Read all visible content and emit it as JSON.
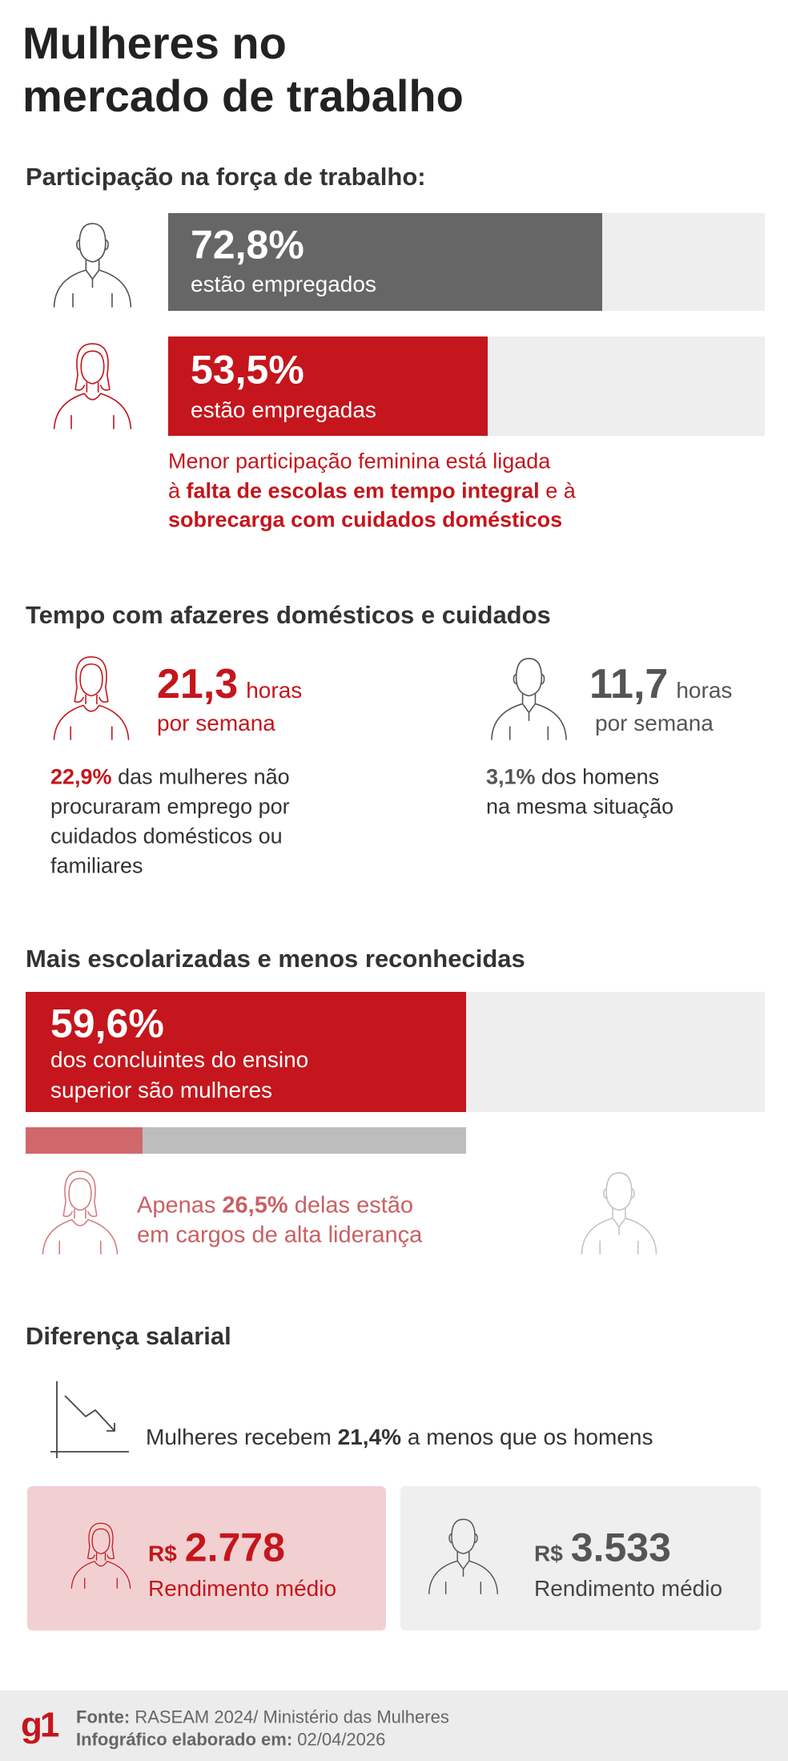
{
  "header": {
    "title_lines": [
      "Mulheres no",
      "mercado de trabalho"
    ]
  },
  "participation": {
    "heading": "Participação na força de trabalho:",
    "men": {
      "value": 72.8,
      "label": "72,8%",
      "caption": "estão empregados"
    },
    "women": {
      "value": 53.5,
      "label": "53,5%",
      "caption": "estão empregadas"
    },
    "note": [
      [
        {
          "text": "Menor participação feminina está ligada"
        }
      ],
      [
        {
          "text": "à "
        },
        {
          "text": "falta de escolas em tempo integral",
          "strong": true
        },
        {
          "text": " e à"
        }
      ],
      [
        {
          "text": "sobrecarga com cuidados domésticos",
          "strong": true
        }
      ]
    ]
  },
  "domestic": {
    "heading": "Tempo com afazeres domésticos e cuidados",
    "women": {
      "hours": "21,3",
      "unit": "horas",
      "period": "por semana",
      "note": [
        [
          {
            "text": "22,9%",
            "strong": true
          },
          {
            "text": " das mulheres não"
          }
        ],
        [
          {
            "text": "procuraram emprego por"
          }
        ],
        [
          {
            "text": "cuidados domésticos ou"
          }
        ],
        [
          {
            "text": "familiares"
          }
        ]
      ]
    },
    "men": {
      "hours": "11,7",
      "unit": "horas",
      "period": "por semana",
      "note": [
        [
          {
            "text": "3,1%",
            "strong": true
          },
          {
            "text": " dos homens"
          }
        ],
        [
          {
            "text": "na mesma situação"
          }
        ]
      ]
    }
  },
  "education": {
    "heading": "Mais escolarizadas e menos reconhecidas",
    "graduates": {
      "value": 59.6,
      "label": "59,6%",
      "caption_lines": [
        "dos concluintes do ensino",
        "superior são mulheres"
      ]
    },
    "leadership": {
      "value": 26.5,
      "note": [
        [
          {
            "text": "Apenas "
          },
          {
            "text": "26,5%",
            "strong": true
          },
          {
            "text": " delas estão"
          }
        ],
        [
          {
            "text": "em cargos de alta liderança"
          }
        ]
      ]
    }
  },
  "salary": {
    "heading": "Diferença salarial",
    "note": [
      {
        "text": "Mulheres recebem "
      },
      {
        "text": "21,4%",
        "strong": true
      },
      {
        "text": " a menos que os homens"
      }
    ],
    "women": {
      "currency": "R$",
      "amount": "2.778",
      "caption": "Rendimento médio"
    },
    "men": {
      "currency": "R$",
      "amount": "3.533",
      "caption": "Rendimento médio"
    }
  },
  "footer": {
    "logo": "g1",
    "lines": [
      [
        {
          "text": "Fonte:",
          "strong": true
        },
        {
          "text": " RASEAM 2024/ Ministério das Mulheres"
        }
      ],
      [
        {
          "text": "Infográfico elaborado em:",
          "strong": true
        },
        {
          "text": " 02/04/2026"
        }
      ]
    ]
  }
}
